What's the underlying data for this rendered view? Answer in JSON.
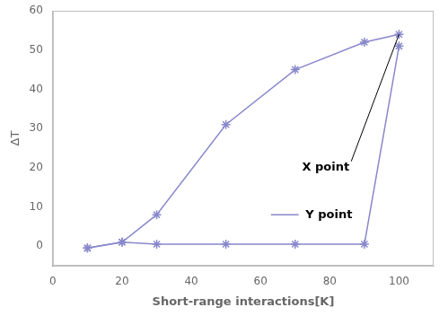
{
  "chart_data": {
    "type": "line",
    "x": [
      10,
      20,
      30,
      50,
      70,
      90,
      100
    ],
    "series": [
      {
        "color": "#8888cc",
        "marker": "star",
        "values": [
          -0.5,
          1.0,
          8.0,
          31.0,
          45.0,
          52.0,
          54.0
        ]
      },
      {
        "color": "#8888cc",
        "marker": "star",
        "values": [
          -0.5,
          1.0,
          0.5,
          0.5,
          0.5,
          0.5,
          51.0
        ]
      }
    ],
    "x_label": "Short-range interactions[K]",
    "y_label": "ΔT",
    "xlim": [
      0,
      110
    ],
    "ylim": [
      -5,
      60
    ],
    "xticks": [
      0,
      20,
      40,
      60,
      80,
      100
    ],
    "yticks": [
      0,
      10,
      20,
      30,
      40,
      50,
      60
    ],
    "grid": false,
    "annotations": [
      {
        "text": "X point",
        "x": 72,
        "y": 20,
        "xy": [
          100,
          54
        ]
      },
      {
        "text": "Y point",
        "x": 73,
        "y": 8,
        "line_x": [
          63,
          71
        ],
        "color": "#8888cc"
      }
    ]
  }
}
